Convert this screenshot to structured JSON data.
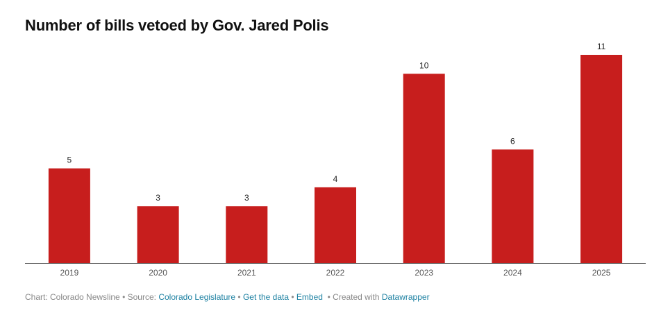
{
  "chart_data": {
    "type": "bar",
    "title": "Number of bills vetoed by Gov. Jared Polis",
    "categories": [
      "2019",
      "2020",
      "2021",
      "2022",
      "2023",
      "2024",
      "2025"
    ],
    "values": [
      5,
      3,
      3,
      4,
      10,
      6,
      11
    ],
    "value_labels": [
      "5",
      "3",
      "3",
      "4",
      "10",
      "6",
      "11"
    ],
    "ylim": [
      0,
      11
    ],
    "grid": false,
    "bar_color": "#c71e1d",
    "axis_color": "#555555"
  },
  "footer": {
    "chart_credit": "Chart: Colorado Newsline",
    "source_prefix": "Source:",
    "source_link": "Colorado Legislature",
    "get_data_link": "Get the data",
    "embed_link": "Embed",
    "created_with": "Created with",
    "datawrapper_link": "Datawrapper",
    "separator": "•",
    "link_color": "#1d81a2"
  }
}
